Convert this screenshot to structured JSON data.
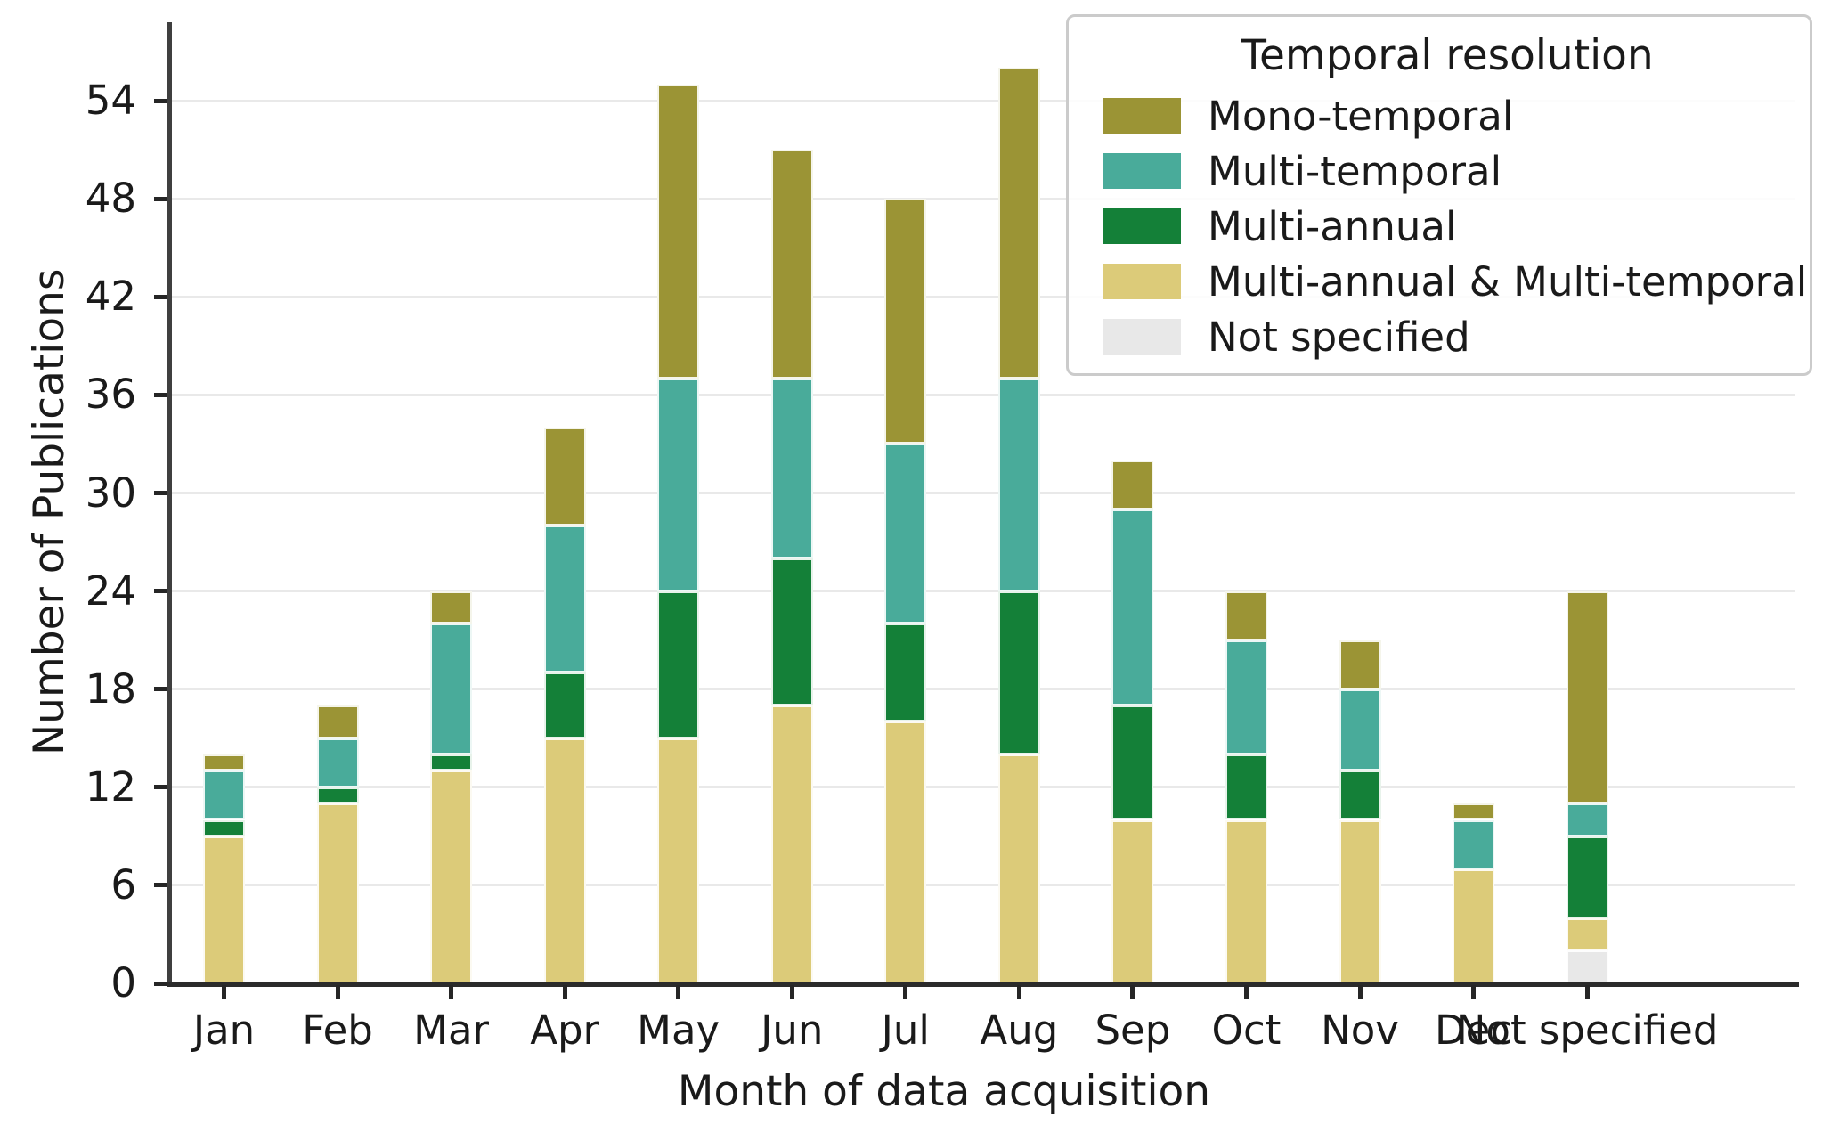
{
  "chart_data": {
    "type": "bar",
    "stacked": true,
    "xlabel": "Month of data acquisition",
    "ylabel": "Number of Publications",
    "categories": [
      "Jan",
      "Feb",
      "Mar",
      "Apr",
      "May",
      "Jun",
      "Jul",
      "Aug",
      "Sep",
      "Oct",
      "Nov",
      "Dec",
      "Not specified"
    ],
    "y_ticks": [
      0,
      6,
      12,
      18,
      24,
      30,
      36,
      42,
      48,
      54
    ],
    "ylim": [
      0,
      58.8
    ],
    "grid": "horizontal",
    "legend": {
      "title": "Temporal resolution",
      "position": "upper right"
    },
    "series": [
      {
        "name": "Mono-temporal",
        "color": "#9b9435",
        "values": [
          1,
          2,
          2,
          6,
          18,
          14,
          15,
          19,
          3,
          3,
          3,
          1,
          13
        ]
      },
      {
        "name": "Multi-temporal",
        "color": "#49ab9a",
        "values": [
          3,
          3,
          8,
          9,
          13,
          11,
          11,
          13,
          12,
          7,
          5,
          3,
          2
        ]
      },
      {
        "name": "Multi-annual",
        "color": "#148038",
        "values": [
          1,
          1,
          1,
          4,
          9,
          9,
          6,
          10,
          7,
          4,
          3,
          0,
          5
        ]
      },
      {
        "name": "Multi-annual & Multi-temporal",
        "color": "#dccb79",
        "values": [
          9,
          11,
          13,
          15,
          15,
          17,
          16,
          14,
          10,
          10,
          10,
          7,
          2
        ]
      },
      {
        "name": "Not specified",
        "color": "#e8e8e8",
        "values": [
          0,
          0,
          0,
          0,
          0,
          0,
          0,
          0,
          0,
          0,
          0,
          0,
          2
        ]
      }
    ],
    "stack_order_bottom_to_top": [
      "Not specified",
      "Multi-annual & Multi-temporal",
      "Multi-annual",
      "Multi-temporal",
      "Mono-temporal"
    ],
    "totals": [
      14,
      17,
      24,
      34,
      55,
      51,
      48,
      56,
      32,
      24,
      21,
      11,
      24
    ],
    "colors": {
      "grid": "#e9e9e9",
      "spine": "#3f3f3f",
      "text": "#1a1a1a"
    }
  }
}
